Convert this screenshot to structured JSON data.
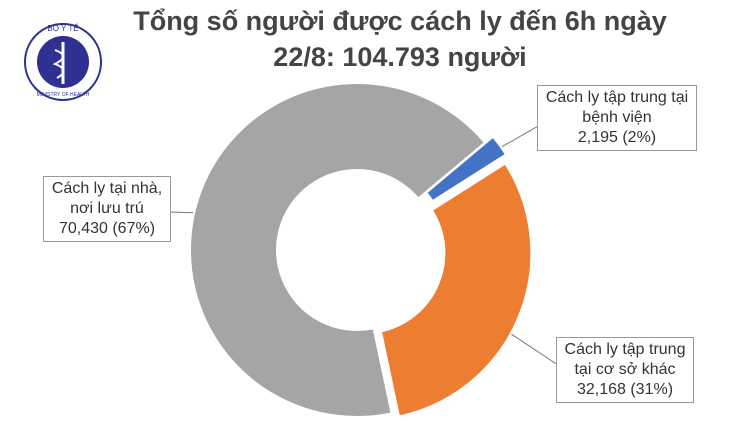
{
  "logo": {
    "top": "BỘ Y TẾ",
    "bottom": "MINISTRY OF HEALTH"
  },
  "chart_data": {
    "type": "donut",
    "title": [
      "Tổng số người được cách ly đến 6h ngày",
      "22/8: 104.793 người"
    ],
    "categories": [
      "Cách ly tập trung tại bệnh viện",
      "Cách ly tập trung tại cơ sở khác",
      "Cách ly tại nhà, nơi lưu trú"
    ],
    "values": [
      2195,
      32168,
      70430
    ],
    "value_labels": [
      "2,195 (2%)",
      "32,168 (31%)",
      "70,430 (67%)"
    ],
    "colors": [
      "#4472c4",
      "#ed7d31",
      "#a5a5a5"
    ]
  }
}
